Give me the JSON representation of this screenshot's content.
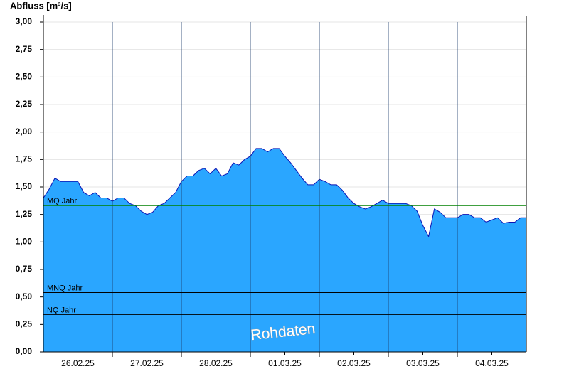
{
  "chart_data": {
    "type": "area",
    "title": "Abfluss [m³/s]",
    "annotation": "Rohdaten",
    "categories": [
      null,
      null,
      null,
      null,
      null,
      null,
      "26.02.25",
      null,
      null,
      null,
      null,
      null,
      null,
      null,
      null,
      null,
      null,
      null,
      "27.02.25",
      null,
      null,
      null,
      null,
      null,
      null,
      null,
      null,
      null,
      null,
      null,
      "28.02.25",
      null,
      null,
      null,
      null,
      null,
      null,
      null,
      null,
      null,
      null,
      null,
      "01.03.25",
      null,
      null,
      null,
      null,
      null,
      null,
      null,
      null,
      null,
      null,
      null,
      "02.03.25",
      null,
      null,
      null,
      null,
      null,
      null,
      null,
      null,
      null,
      null,
      null,
      "03.03.25",
      null,
      null,
      null,
      null,
      null,
      null,
      null,
      null,
      null,
      null,
      null,
      "04.03.25",
      null,
      null,
      null,
      null,
      null
    ],
    "series": [
      {
        "name": "Abfluss",
        "color": "#2aa6ff",
        "line_color": "#0a14b4",
        "values": [
          1.4,
          1.48,
          1.58,
          1.55,
          1.55,
          1.55,
          1.55,
          1.45,
          1.42,
          1.45,
          1.4,
          1.4,
          1.37,
          1.4,
          1.4,
          1.35,
          1.33,
          1.28,
          1.25,
          1.27,
          1.33,
          1.35,
          1.4,
          1.45,
          1.55,
          1.6,
          1.6,
          1.65,
          1.67,
          1.62,
          1.67,
          1.6,
          1.62,
          1.72,
          1.7,
          1.75,
          1.78,
          1.85,
          1.85,
          1.82,
          1.85,
          1.85,
          1.78,
          1.72,
          1.65,
          1.58,
          1.52,
          1.52,
          1.57,
          1.55,
          1.52,
          1.52,
          1.47,
          1.4,
          1.35,
          1.32,
          1.3,
          1.32,
          1.35,
          1.38,
          1.35,
          1.35,
          1.35,
          1.35,
          1.33,
          1.28,
          1.15,
          1.05,
          1.3,
          1.27,
          1.22,
          1.22,
          1.22,
          1.25,
          1.25,
          1.22,
          1.22,
          1.18,
          1.2,
          1.22,
          1.17,
          1.18,
          1.18,
          1.22
        ]
      }
    ],
    "reference_lines": [
      {
        "name": "MQ Jahr",
        "value": 1.33,
        "color": "#008000"
      },
      {
        "name": "MNQ Jahr",
        "value": 0.54,
        "color": "#000000"
      },
      {
        "name": "NQ Jahr",
        "value": 0.34,
        "color": "#000000"
      }
    ],
    "ylim": [
      0,
      3
    ],
    "yticks": [
      {
        "value": 0,
        "label": "0,00"
      },
      {
        "value": 0.25,
        "label": "0,25"
      },
      {
        "value": 0.5,
        "label": "0,50"
      },
      {
        "value": 0.75,
        "label": "0,75"
      },
      {
        "value": 1,
        "label": "1,00"
      },
      {
        "value": 1.25,
        "label": "1,25"
      },
      {
        "value": 1.5,
        "label": "1,50"
      },
      {
        "value": 1.75,
        "label": "1,75"
      },
      {
        "value": 2,
        "label": "2,00"
      },
      {
        "value": 2.25,
        "label": "2,25"
      },
      {
        "value": 2.5,
        "label": "2,50"
      },
      {
        "value": 2.75,
        "label": "2,75"
      },
      {
        "value": 3,
        "label": "3,00"
      }
    ],
    "grid": true
  }
}
